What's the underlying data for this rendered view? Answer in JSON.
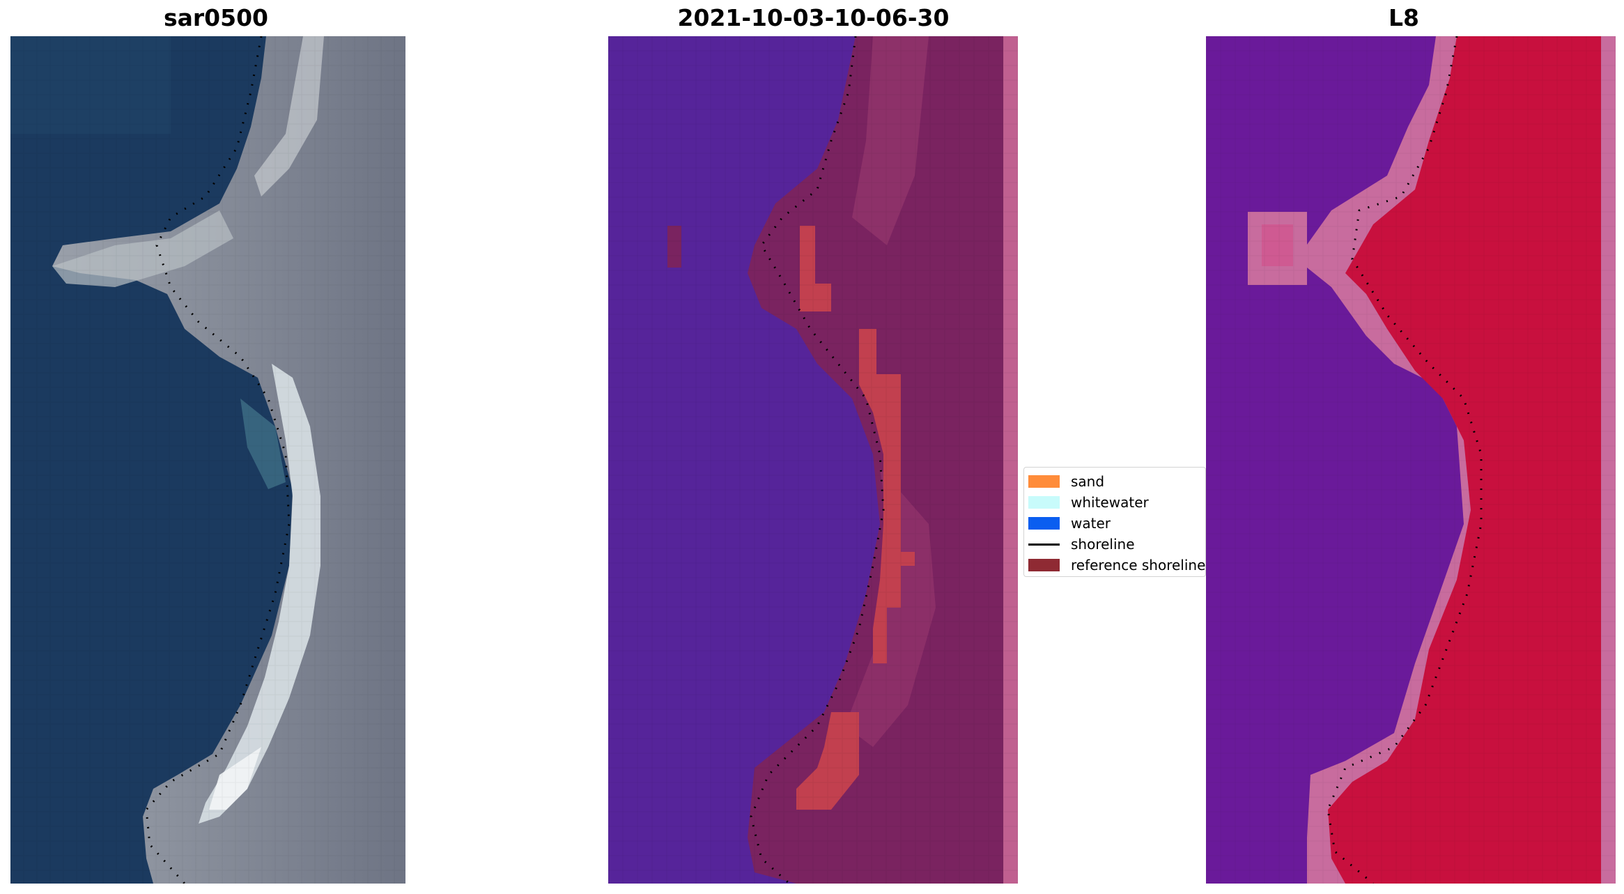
{
  "panels": {
    "left_title": "sar0500",
    "middle_title": "2021-10-03-10-06-30",
    "right_title": "L8"
  },
  "legend": {
    "items": [
      {
        "label": "sand",
        "color": "#ff8c3a",
        "kind": "patch"
      },
      {
        "label": "whitewater",
        "color": "#c8fbfb",
        "kind": "patch"
      },
      {
        "label": "water",
        "color": "#0a5ef0",
        "kind": "patch"
      },
      {
        "label": "shoreline",
        "color": "#000000",
        "kind": "line"
      },
      {
        "label": "reference shoreline",
        "color": "#8f2a33",
        "kind": "patch"
      }
    ]
  },
  "colors": {
    "rgb_water": "#1b3a5f",
    "rgb_land": "#8b8e98",
    "rgb_beach": "#dfe6ea",
    "class_water": "#56249a",
    "class_land": "#7a2360",
    "class_sand_overlay": "#c2404f",
    "class_edge": "#c06090",
    "ndwi_water": "#6a1a9a",
    "ndwi_land": "#c8103e",
    "ndwi_edge": "#c86c9e"
  }
}
